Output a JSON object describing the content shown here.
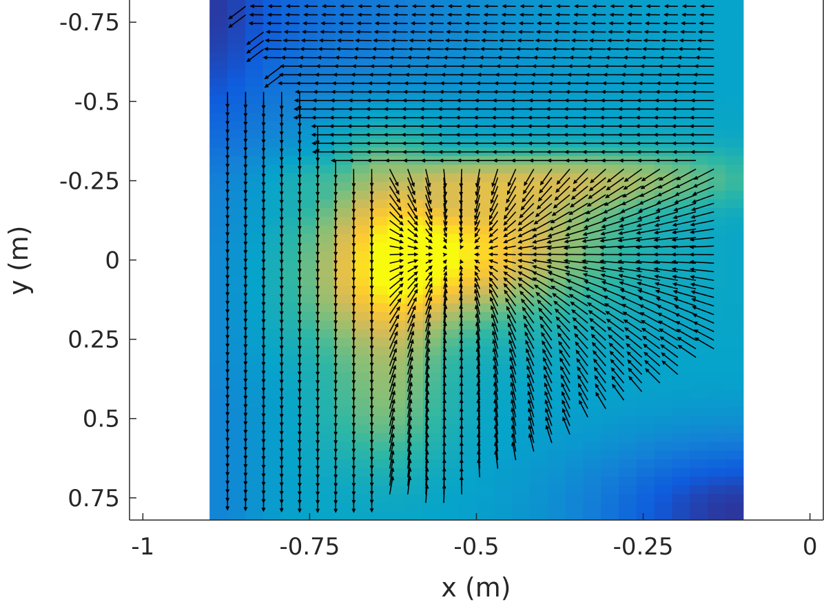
{
  "chart_data": {
    "type": "heatmap",
    "subtype": "vector-field-over-scalar-field",
    "title": "",
    "xlabel": "x (m)",
    "ylabel": "y (m)",
    "xlim": [
      -1.02,
      0.02
    ],
    "ylim": [
      -0.82,
      0.82
    ],
    "y_axis_reversed": true,
    "x_ticks": [
      -1,
      -0.75,
      -0.5,
      -0.25,
      0
    ],
    "x_tick_labels": [
      "-1",
      "-0.75",
      "-0.5",
      "-0.25",
      "0"
    ],
    "y_ticks": [
      -0.75,
      -0.5,
      -0.25,
      0,
      0.25,
      0.5,
      0.75
    ],
    "y_tick_labels": [
      "-0.75",
      "-0.5",
      "-0.25",
      "0",
      "0.25",
      "0.5",
      "0.75"
    ],
    "grid": false,
    "colormap": "parula",
    "heatmap_extent": {
      "x": [
        -0.9,
        -0.1
      ],
      "y": [
        -0.82,
        0.82
      ]
    },
    "heatmap_peak": {
      "x": -0.53,
      "y": -0.02
    },
    "quiver_extent": {
      "x": [
        -0.9,
        -0.1
      ],
      "y": [
        -0.8,
        0.8
      ]
    },
    "quiver_spacing": 0.027,
    "quiver_color": "#000000"
  },
  "colors": {
    "axis": "#262626",
    "background": "#ffffff",
    "parula": [
      "#352a87",
      "#0f5cdd",
      "#1481d6",
      "#06a4ca",
      "#2eb7a4",
      "#87bf77",
      "#d1bb59",
      "#fec832",
      "#f9fb0e"
    ]
  }
}
